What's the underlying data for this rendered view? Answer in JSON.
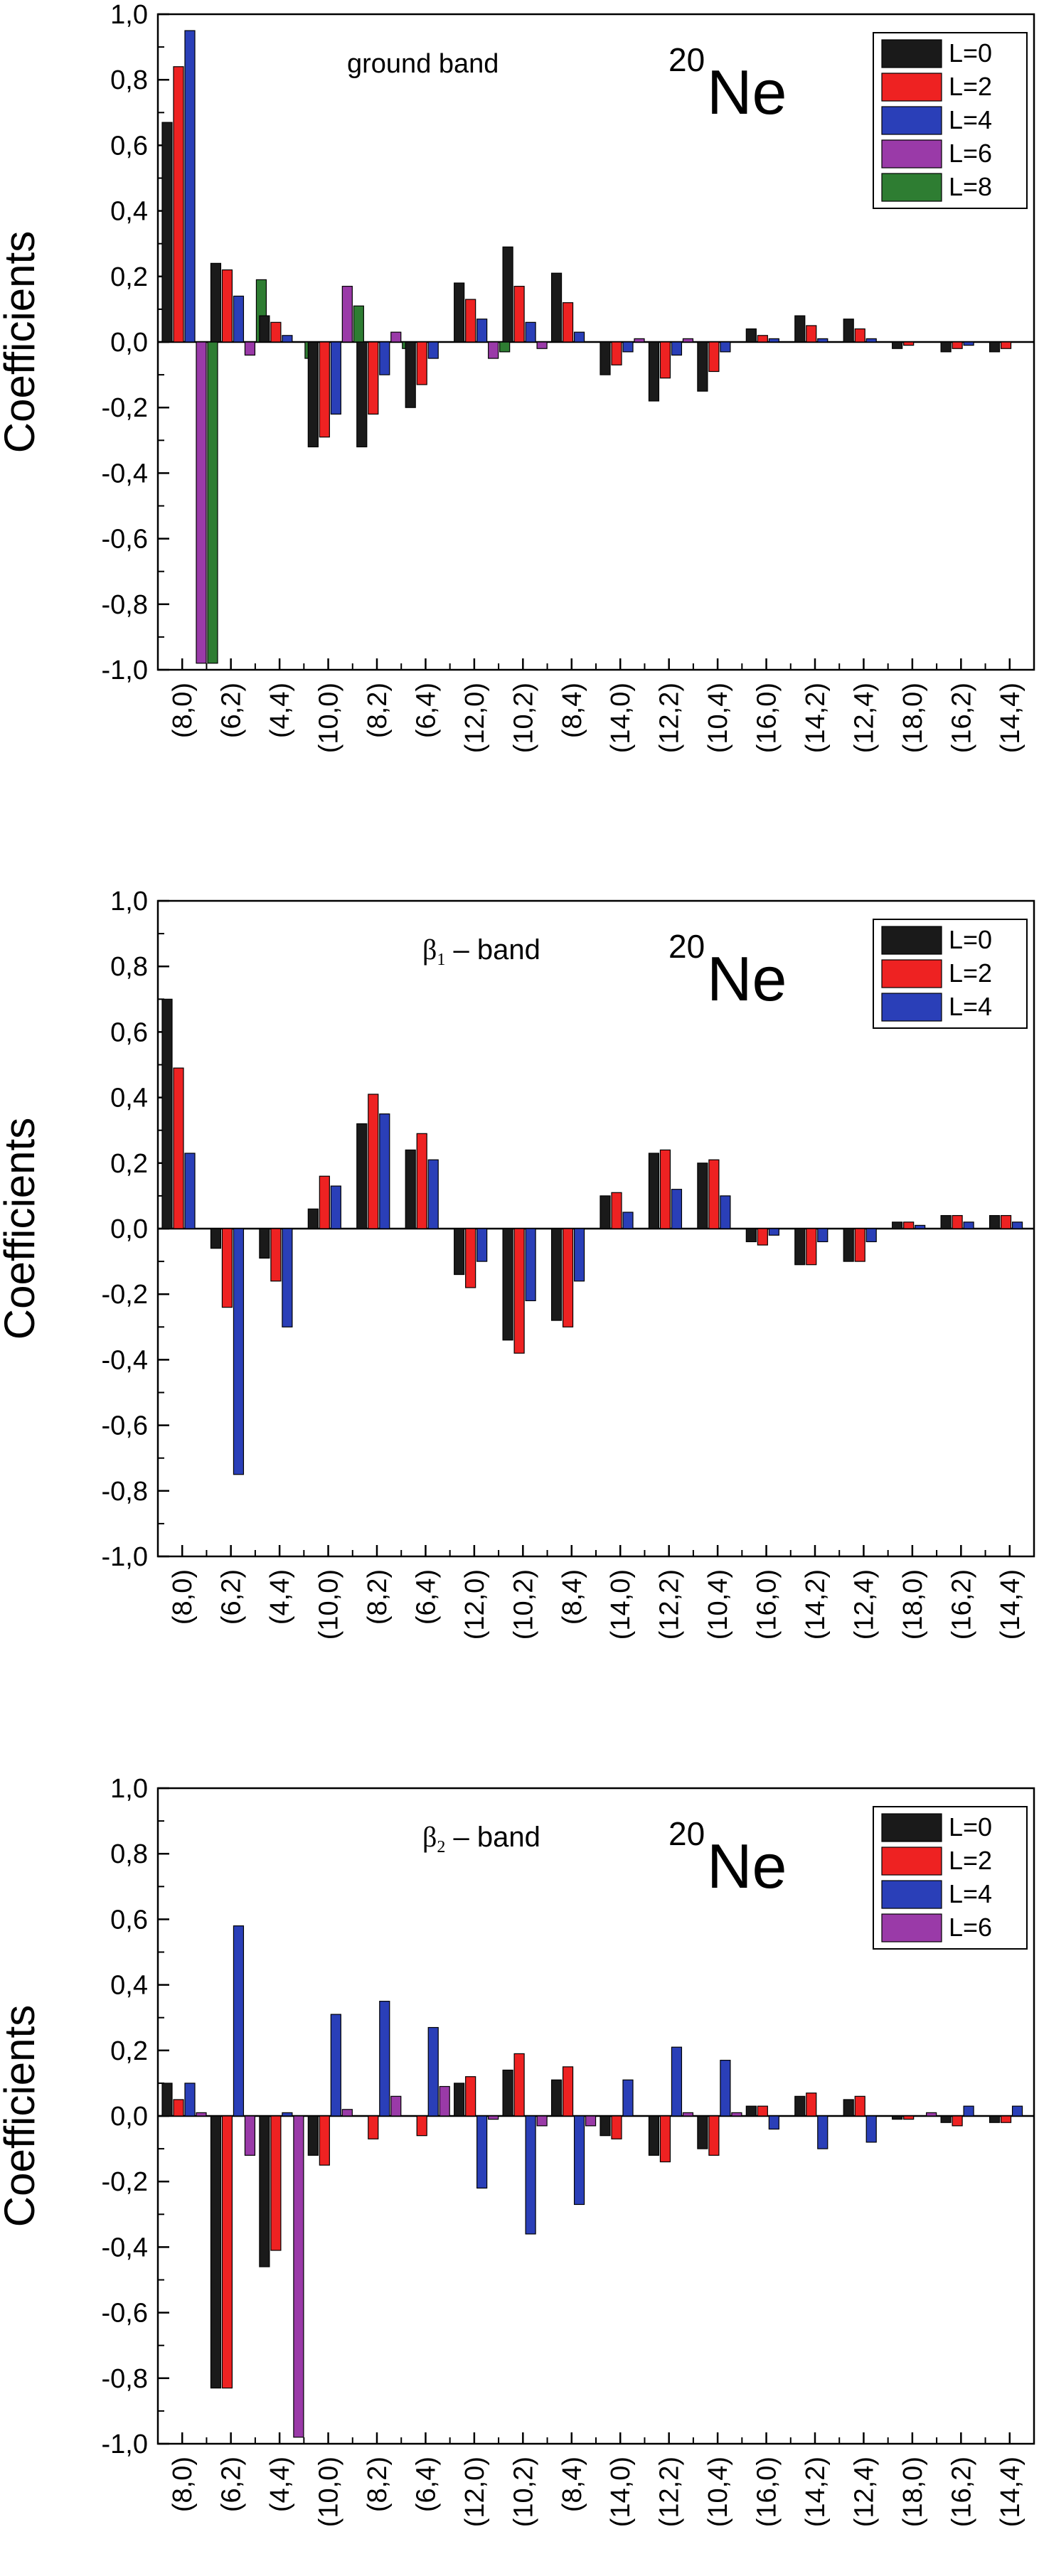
{
  "colors": {
    "L=0": "#1a1a1a",
    "L=2": "#ee2222",
    "L=4": "#2a3fb8",
    "L=6": "#9a3aa8",
    "L=8": "#2e7d32"
  },
  "chart_data": [
    {
      "type": "bar",
      "annotation": "ground band",
      "nucleus_mass": "20",
      "nucleus_symbol": "Ne",
      "ylabel": "Coefficients",
      "ylim": [
        -1.0,
        1.0
      ],
      "yticks": [
        "-1,0",
        "-0,8",
        "-0,6",
        "-0,4",
        "-0,2",
        "0,0",
        "0,2",
        "0,4",
        "0,6",
        "0,8",
        "1,0"
      ],
      "legend_position": "top-right",
      "categories": [
        "(8,0)",
        "(6,2)",
        "(4,4)",
        "(10,0)",
        "(8,2)",
        "(6,4)",
        "(12,0)",
        "(10,2)",
        "(8,4)",
        "(14,0)",
        "(12,2)",
        "(10,4)",
        "(16,0)",
        "(14,2)",
        "(12,4)",
        "(18,0)",
        "(16,2)",
        "(14,4)"
      ],
      "series": [
        {
          "name": "L=0",
          "values": [
            0.67,
            0.24,
            0.08,
            -0.32,
            -0.32,
            -0.2,
            0.18,
            0.29,
            0.21,
            -0.1,
            -0.18,
            -0.15,
            0.04,
            0.08,
            0.07,
            -0.02,
            -0.03,
            -0.03
          ]
        },
        {
          "name": "L=2",
          "values": [
            0.84,
            0.22,
            0.06,
            -0.29,
            -0.22,
            -0.13,
            0.13,
            0.17,
            0.12,
            -0.07,
            -0.11,
            -0.09,
            0.02,
            0.05,
            0.04,
            -0.01,
            -0.02,
            -0.02
          ]
        },
        {
          "name": "L=4",
          "values": [
            0.95,
            0.14,
            0.02,
            -0.22,
            -0.1,
            -0.05,
            0.07,
            0.06,
            0.03,
            -0.03,
            -0.04,
            -0.03,
            0.01,
            0.01,
            0.01,
            0.0,
            -0.01,
            0.0
          ]
        },
        {
          "name": "L=6",
          "values": [
            -0.98,
            -0.04,
            0.0,
            0.17,
            0.03,
            0.0,
            -0.05,
            -0.02,
            0.0,
            0.01,
            0.01,
            0.0,
            0.0,
            0.0,
            0.0,
            0.0,
            0.0,
            0.0
          ]
        },
        {
          "name": "L=8",
          "values": [
            -0.98,
            0.19,
            -0.05,
            0.11,
            -0.02,
            0.0,
            -0.03,
            0.0,
            0.0,
            0.0,
            0.0,
            0.0,
            0.0,
            0.0,
            0.0,
            0.0,
            0.0,
            0.0
          ]
        }
      ]
    },
    {
      "type": "bar",
      "annotation_symbol": "β",
      "annotation_sub": "1",
      "annotation_rest": " – band",
      "nucleus_mass": "20",
      "nucleus_symbol": "Ne",
      "ylabel": "Coefficients",
      "ylim": [
        -1.0,
        1.0
      ],
      "yticks": [
        "-1,0",
        "-0,8",
        "-0,6",
        "-0,4",
        "-0,2",
        "0,0",
        "0,2",
        "0,4",
        "0,6",
        "0,8",
        "1,0"
      ],
      "legend_position": "top-right",
      "categories": [
        "(8,0)",
        "(6,2)",
        "(4,4)",
        "(10,0)",
        "(8,2)",
        "(6,4)",
        "(12,0)",
        "(10,2)",
        "(8,4)",
        "(14,0)",
        "(12,2)",
        "(10,4)",
        "(16,0)",
        "(14,2)",
        "(12,4)",
        "(18,0)",
        "(16,2)",
        "(14,4)"
      ],
      "series": [
        {
          "name": "L=0",
          "values": [
            0.7,
            -0.06,
            -0.09,
            0.06,
            0.32,
            0.24,
            -0.14,
            -0.34,
            -0.28,
            0.1,
            0.23,
            0.2,
            -0.04,
            -0.11,
            -0.1,
            0.02,
            0.04,
            0.04
          ]
        },
        {
          "name": "L=2",
          "values": [
            0.49,
            -0.24,
            -0.16,
            0.16,
            0.41,
            0.29,
            -0.18,
            -0.38,
            -0.3,
            0.11,
            0.24,
            0.21,
            -0.05,
            -0.11,
            -0.1,
            0.02,
            0.04,
            0.04
          ]
        },
        {
          "name": "L=4",
          "values": [
            0.23,
            -0.75,
            -0.3,
            0.13,
            0.35,
            0.21,
            -0.1,
            -0.22,
            -0.16,
            0.05,
            0.12,
            0.1,
            -0.02,
            -0.04,
            -0.04,
            0.01,
            0.02,
            0.02
          ]
        }
      ]
    },
    {
      "type": "bar",
      "annotation_symbol": "β",
      "annotation_sub": "2",
      "annotation_rest": " – band",
      "nucleus_mass": "20",
      "nucleus_symbol": "Ne",
      "ylabel": "Coefficients",
      "ylim": [
        -1.0,
        1.0
      ],
      "yticks": [
        "-1,0",
        "-0,8",
        "-0,6",
        "-0,4",
        "-0,2",
        "0,0",
        "0,2",
        "0,4",
        "0,6",
        "0,8",
        "1,0"
      ],
      "legend_position": "top-right",
      "categories": [
        "(8,0)",
        "(6,2)",
        "(4,4)",
        "(10,0)",
        "(8,2)",
        "(6,4)",
        "(12,0)",
        "(10,2)",
        "(8,4)",
        "(14,0)",
        "(12,2)",
        "(10,4)",
        "(16,0)",
        "(14,2)",
        "(12,4)",
        "(18,0)",
        "(16,2)",
        "(14,4)"
      ],
      "series": [
        {
          "name": "L=0",
          "values": [
            0.1,
            -0.83,
            -0.46,
            -0.12,
            0.0,
            0.0,
            0.1,
            0.14,
            0.11,
            -0.06,
            -0.12,
            -0.1,
            0.03,
            0.06,
            0.05,
            -0.01,
            -0.02,
            -0.02
          ]
        },
        {
          "name": "L=2",
          "values": [
            0.05,
            -0.83,
            -0.41,
            -0.15,
            -0.07,
            -0.06,
            0.12,
            0.19,
            0.15,
            -0.07,
            -0.14,
            -0.12,
            0.03,
            0.07,
            0.06,
            -0.01,
            -0.03,
            -0.02
          ]
        },
        {
          "name": "L=4",
          "values": [
            0.1,
            0.58,
            0.01,
            0.31,
            0.35,
            0.27,
            -0.22,
            -0.36,
            -0.27,
            0.11,
            0.21,
            0.17,
            -0.04,
            -0.1,
            -0.08,
            0.0,
            0.03,
            0.03
          ]
        },
        {
          "name": "L=6",
          "values": [
            0.01,
            -0.12,
            -0.98,
            0.02,
            0.06,
            0.09,
            -0.01,
            -0.03,
            -0.03,
            0.0,
            0.01,
            0.01,
            0.0,
            0.0,
            0.0,
            0.01,
            0.0,
            0.0
          ]
        }
      ]
    }
  ]
}
